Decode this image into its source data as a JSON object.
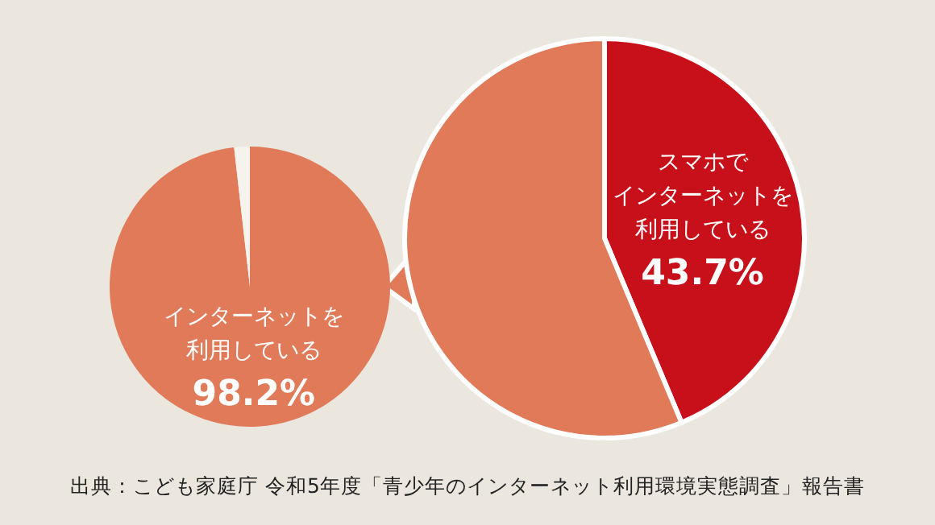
{
  "chart_data": [
    {
      "type": "pie",
      "categories": [
        "インターネットを利用している",
        null
      ],
      "values": [
        98.2,
        1.8
      ],
      "colors": [
        "#e07a58",
        "#f6f3ee"
      ],
      "value_labels": [
        "98.2%",
        null
      ]
    },
    {
      "type": "pie",
      "categories": [
        "スマホでインターネットを利用している",
        null
      ],
      "values": [
        43.7,
        56.3
      ],
      "colors": [
        "#c8101a",
        "#e07a58"
      ],
      "value_labels": [
        "43.7%",
        null
      ],
      "annotations": [
        "出典：こども家庭庁 令和5年度「青少年のインターネット利用環境実態調査」報告書"
      ]
    }
  ]
}
